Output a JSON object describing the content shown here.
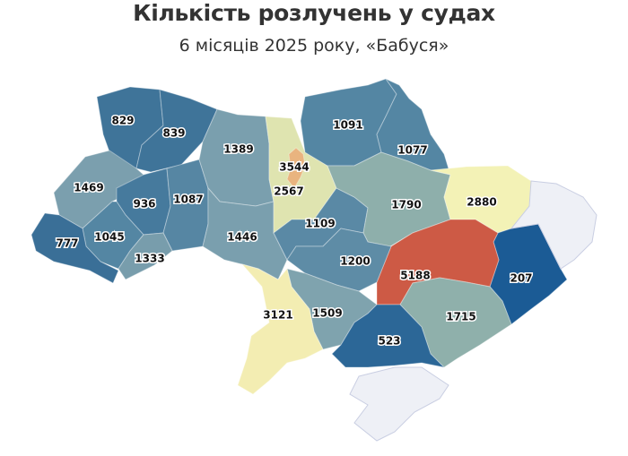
{
  "title": "Кількість розлучень у судах",
  "subtitle": "6 місяців 2025 року, «Бабуся»",
  "regions": [
    {
      "value": "829",
      "color": "#3f7499"
    },
    {
      "value": "839",
      "color": "#3f7499"
    },
    {
      "value": "1469",
      "color": "#7b9fae"
    },
    {
      "value": "936",
      "color": "#467a9d"
    },
    {
      "value": "1087",
      "color": "#5686a3"
    },
    {
      "value": "1045",
      "color": "#5486a3"
    },
    {
      "value": "777",
      "color": "#3a6f97"
    },
    {
      "value": "1333",
      "color": "#789dac"
    },
    {
      "value": "1389",
      "color": "#7a9fae"
    },
    {
      "value": "1446",
      "color": "#7a9fae"
    },
    {
      "value": "2567",
      "color": "#dfe4b0"
    },
    {
      "value": "3544",
      "color": "#e9b47f"
    },
    {
      "value": "1091",
      "color": "#5486a3"
    },
    {
      "value": "1077",
      "color": "#5486a3"
    },
    {
      "value": "1109",
      "color": "#5a89a5"
    },
    {
      "value": "1790",
      "color": "#8eafab"
    },
    {
      "value": "2880",
      "color": "#f3f2b6"
    },
    {
      "value": "207",
      "color": "#1b5b95"
    },
    {
      "value": "5188",
      "color": "#cd5a45"
    },
    {
      "value": "1200",
      "color": "#5e8ca6"
    },
    {
      "value": "1509",
      "color": "#7fa3ae"
    },
    {
      "value": "1715",
      "color": "#8fb0ab"
    },
    {
      "value": "523",
      "color": "#2c6797"
    },
    {
      "value": "3121",
      "color": "#f3edb2"
    },
    {
      "value": "",
      "color": "#eef0f6"
    },
    {
      "value": "",
      "color": "#eef0f6"
    }
  ]
}
